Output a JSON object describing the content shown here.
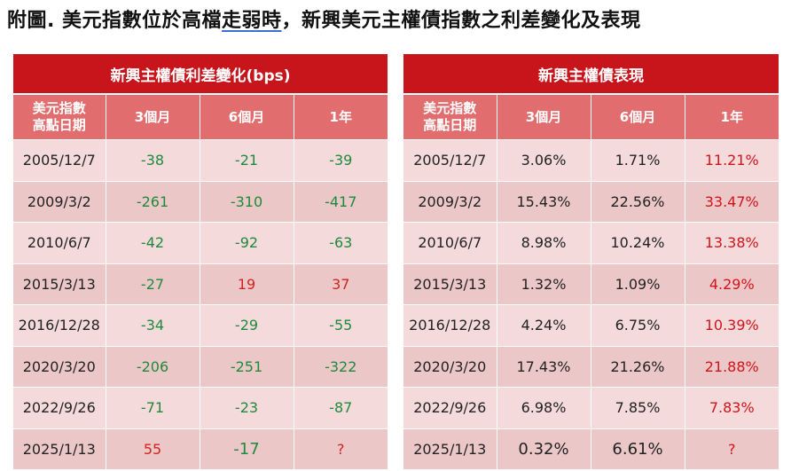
{
  "title": {
    "before": "附圖. 美元指數位於高檔",
    "underlined": "走弱時",
    "after": "，新興美元主權債指數之利差變化及表現"
  },
  "left_table": {
    "caption": "新興主權債利差變化(bps)",
    "headers": [
      "美元指數\n高點日期",
      "3個月",
      "6個月",
      "1年"
    ],
    "rows": [
      [
        "2005/12/7",
        "-38",
        "-21",
        "-39"
      ],
      [
        "2009/3/2",
        "-261",
        "-310",
        "-417"
      ],
      [
        "2010/6/7",
        "-42",
        "-92",
        "-63"
      ],
      [
        "2015/3/13",
        "-27",
        "19",
        "37"
      ],
      [
        "2016/12/28",
        "-34",
        "-29",
        "-55"
      ],
      [
        "2020/3/20",
        "-206",
        "-251",
        "-322"
      ],
      [
        "2022/9/26",
        "-71",
        "-23",
        "-87"
      ],
      [
        "2025/1/13",
        "55",
        "-17",
        "?"
      ]
    ]
  },
  "right_table": {
    "caption": "新興主權債表現",
    "headers": [
      "美元指數\n高點日期",
      "3個月",
      "6個月",
      "1年"
    ],
    "rows": [
      [
        "2005/12/7",
        "3.06%",
        "1.71%",
        "11.21%"
      ],
      [
        "2009/3/2",
        "15.43%",
        "22.56%",
        "33.47%"
      ],
      [
        "2010/6/7",
        "8.98%",
        "10.24%",
        "13.38%"
      ],
      [
        "2015/3/13",
        "1.32%",
        "1.09%",
        "4.29%"
      ],
      [
        "2016/12/28",
        "4.24%",
        "6.75%",
        "10.39%"
      ],
      [
        "2020/3/20",
        "17.43%",
        "21.26%",
        "21.88%"
      ],
      [
        "2022/9/26",
        "6.98%",
        "7.85%",
        "7.83%"
      ],
      [
        "2025/1/13",
        "0.32%",
        "6.61%",
        "?"
      ]
    ]
  },
  "colors": {
    "caption_bg": "#c8141b",
    "header_bg": "#e26d6f",
    "row_light": "#f4dadb",
    "row_dark": "#ecc7c8",
    "positive": "#d0241f",
    "negative": "#1e8a3c"
  }
}
